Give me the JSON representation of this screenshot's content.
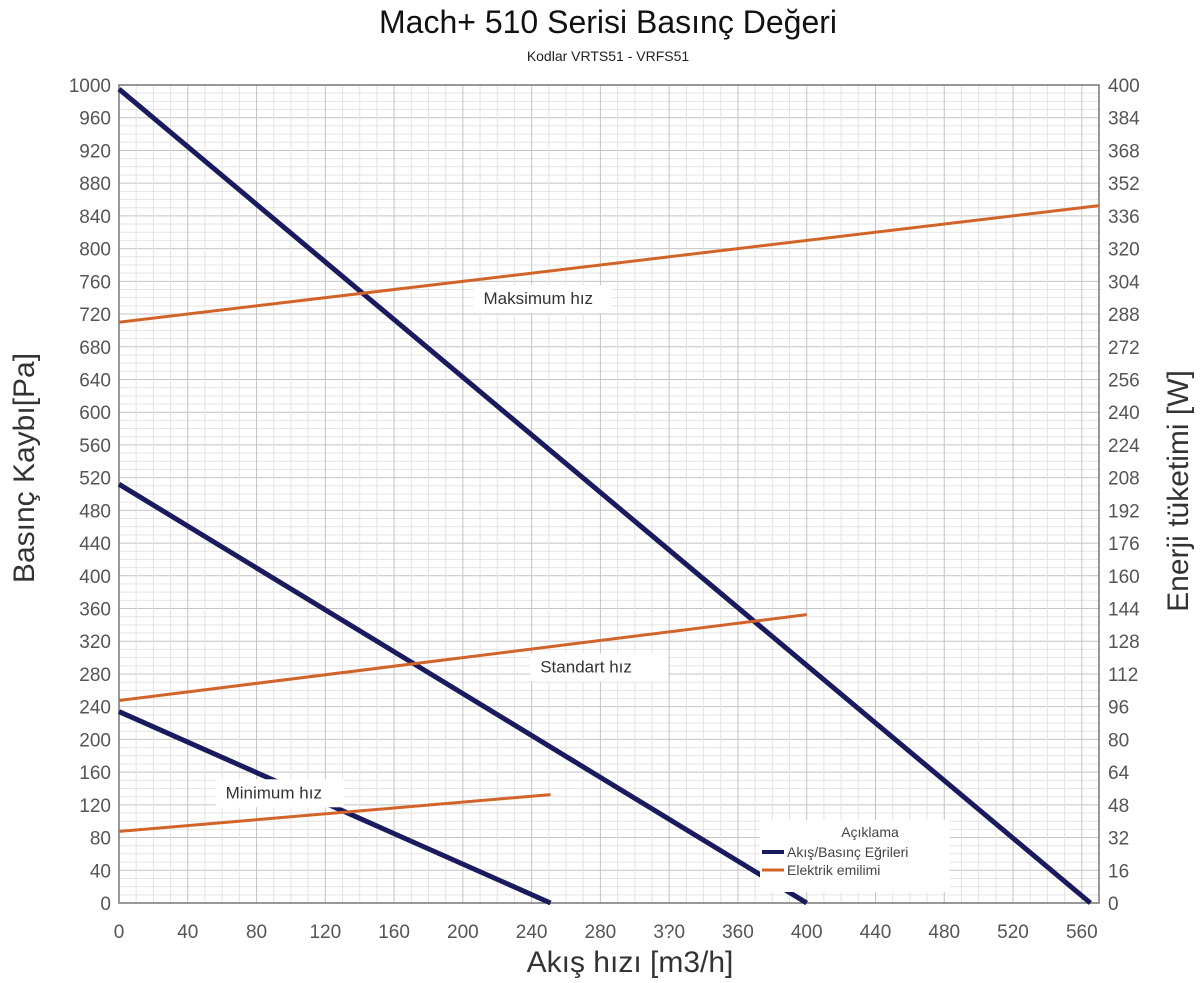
{
  "chart_data": {
    "type": "line",
    "title": "Mach+ 510 Serisi Basınç Değeri",
    "subtitle": "Kodlar VRTS51 - VRFS51",
    "xlabel": "Akış hızı [m3/h]",
    "ylabel": "Basınç Kaybı[Pa]",
    "y2label": "Enerji tüketimi [W]",
    "xlim": [
      0,
      570
    ],
    "ylim": [
      0,
      1000
    ],
    "y2lim": [
      0,
      400
    ],
    "x_ticks": [
      "0",
      "40",
      "80",
      "120",
      "160",
      "200",
      "240",
      "280",
      "3?0",
      "360",
      "400",
      "440",
      "480",
      "520",
      "560"
    ],
    "y_ticks": [
      "0",
      "40",
      "80",
      "120",
      "160",
      "200",
      "240",
      "280",
      "320",
      "360",
      "400",
      "440",
      "480",
      "520",
      "560",
      "600",
      "640",
      "680",
      "720",
      "760",
      "800",
      "840",
      "880",
      "920",
      "960",
      "1000"
    ],
    "y2_ticks": [
      "0",
      "16",
      "32",
      "48",
      "64",
      "80",
      "96",
      "112",
      "128",
      "144",
      "160",
      "176",
      "192",
      "208",
      "224",
      "240",
      "256",
      "272",
      "288",
      "304",
      "320",
      "336",
      "352",
      "368",
      "384",
      "400"
    ],
    "grid": true,
    "series": [
      {
        "name": "Akış/Basınç Eğrileri",
        "axis": "left",
        "color": "#1a1a5e",
        "label": "Maksimum hız",
        "points": [
          [
            0,
            995
          ],
          [
            565,
            0
          ]
        ]
      },
      {
        "name": "Akış/Basınç Eğrileri",
        "axis": "left",
        "color": "#1a1a5e",
        "label": "Standart hız",
        "points": [
          [
            0,
            512
          ],
          [
            400,
            0
          ]
        ]
      },
      {
        "name": "Akış/Basınç Eğrileri",
        "axis": "left",
        "color": "#1a1a5e",
        "label": "Minimum hız",
        "points": [
          [
            0,
            234
          ],
          [
            251,
            0
          ]
        ]
      },
      {
        "name": "Elektrik emilimi",
        "axis": "right",
        "color": "#d2642a",
        "label": "Maksimum hız",
        "points": [
          [
            0,
            284
          ],
          [
            570,
            341
          ]
        ]
      },
      {
        "name": "Elektrik emilimi",
        "axis": "right",
        "color": "#d2642a",
        "label": "Standart hız",
        "points": [
          [
            0,
            99
          ],
          [
            400,
            141
          ]
        ]
      },
      {
        "name": "Elektrik emilimi",
        "axis": "right",
        "color": "#d2642a",
        "label": "Minimum hız",
        "points": [
          [
            0,
            35
          ],
          [
            251,
            53
          ]
        ]
      }
    ],
    "annotations": [
      {
        "text": "Maksimum hız",
        "x": 212,
        "y": 732
      },
      {
        "text": "Standart hız",
        "x": 245,
        "y": 282
      },
      {
        "text": "Minimum hız",
        "x": 62,
        "y": 128
      }
    ],
    "legend": {
      "title": "Açıklama",
      "placement": "bottom-right",
      "items": [
        {
          "label": "Akış/Basınç Eğrileri",
          "color": "#1a1a5e"
        },
        {
          "label": "Elektrik emilimi",
          "color": "#d2642a"
        }
      ]
    }
  }
}
